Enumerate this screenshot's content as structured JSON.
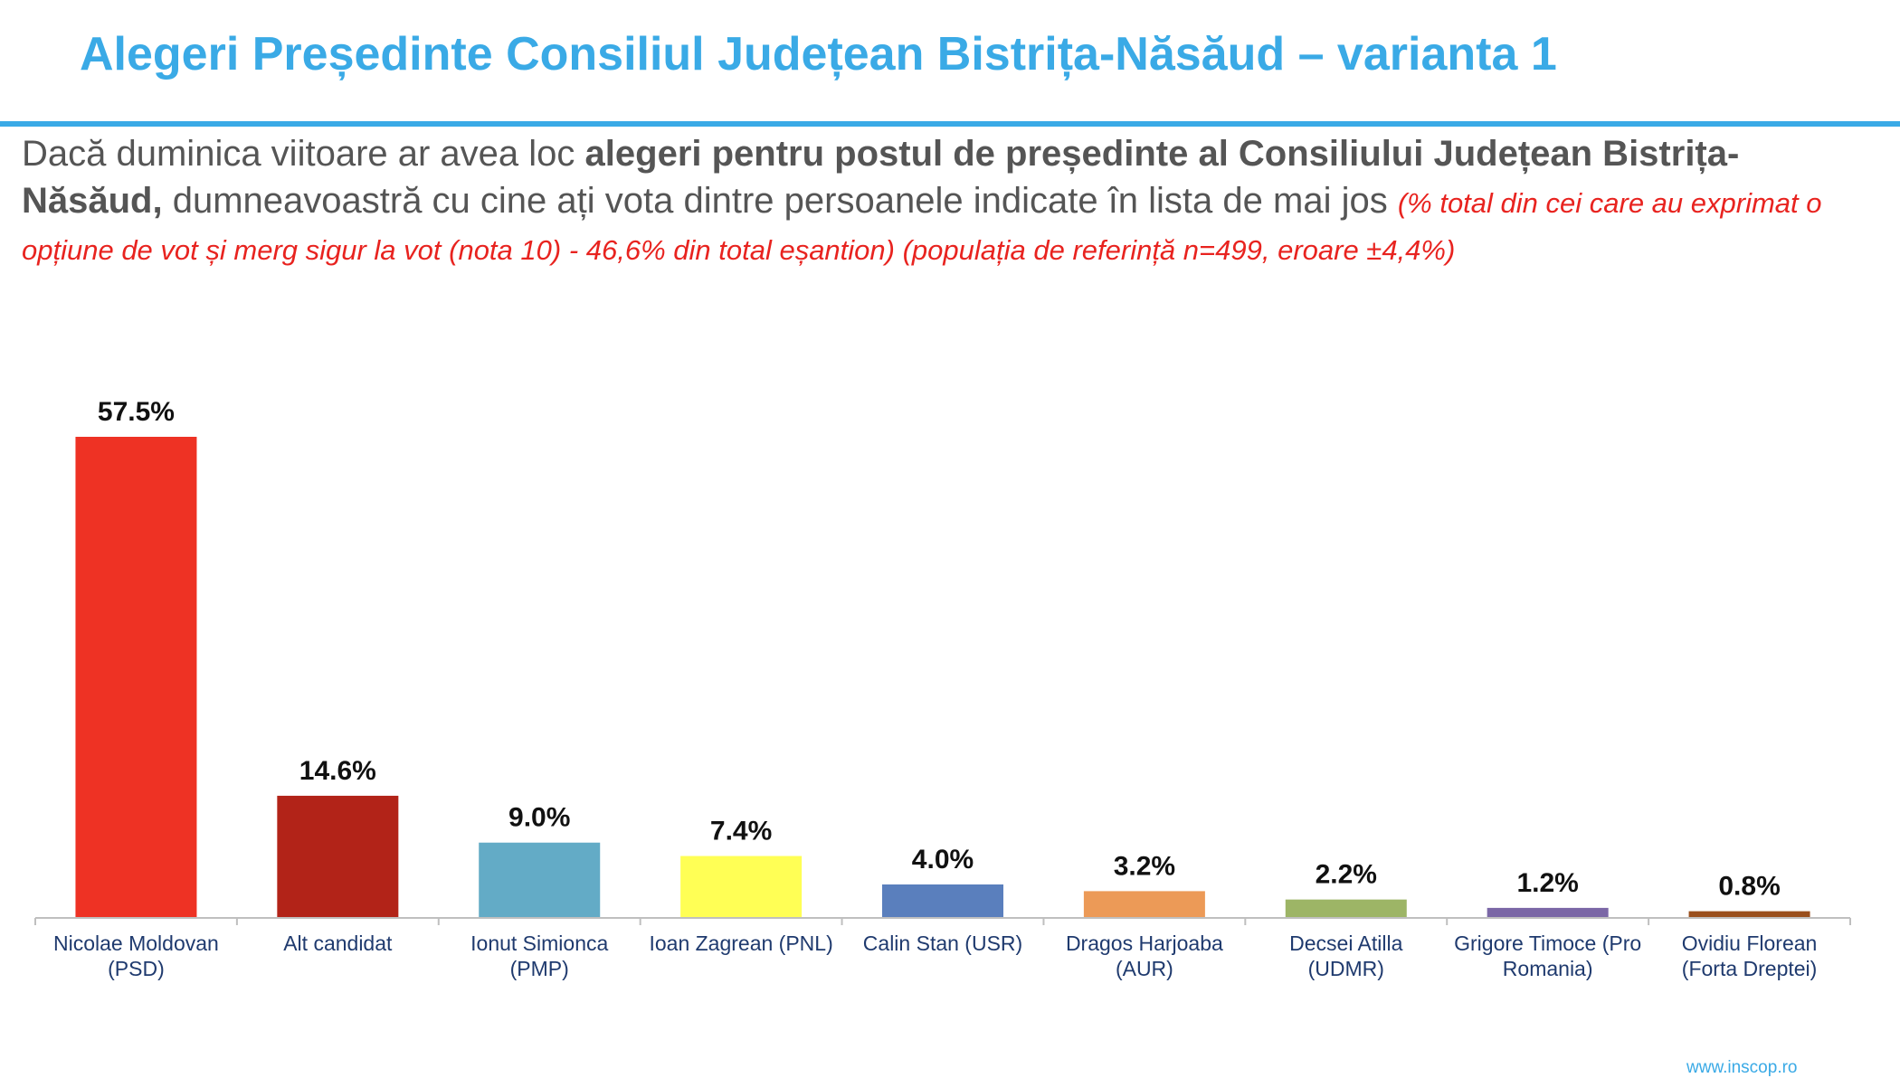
{
  "title": "Alegeri Președinte Consiliul Județean Bistrița-Năsăud – varianta 1",
  "question": {
    "lead": "Dacă duminica viitoare ar avea loc ",
    "bold": "alegeri pentru postul de președinte al Consiliului Județean Bistrița-Năsăud,",
    "rest": " dumneavoastră cu cine ați vota dintre persoanele indicate în lista de mai jos ",
    "note": "(% total din cei care au exprimat o opțiune de vot și merg sigur la vot (nota 10)  - 46,6% din total eșantion) (populația de referință n=499, eroare ±4,4%)"
  },
  "chart_data": {
    "type": "bar",
    "title": "",
    "xlabel": "",
    "ylabel": "",
    "ylim": [
      0,
      57.5
    ],
    "grid": false,
    "categories": [
      [
        "Nicolae Moldovan",
        "(PSD)"
      ],
      [
        "Alt candidat"
      ],
      [
        "Ionut Simionca",
        "(PMP)"
      ],
      [
        "Ioan Zagrean (PNL)"
      ],
      [
        "Calin Stan (USR)"
      ],
      [
        "Dragos Harjoaba",
        "(AUR)"
      ],
      [
        "Decsei Atilla",
        "(UDMR)"
      ],
      [
        "Grigore Timoce (Pro",
        "Romania)"
      ],
      [
        "Ovidiu Florean",
        "(Forta Dreptei)"
      ]
    ],
    "values": [
      57.5,
      14.6,
      9.0,
      7.4,
      4.0,
      3.2,
      2.2,
      1.2,
      0.8
    ],
    "value_labels": [
      "57.5%",
      "14.6%",
      "9.0%",
      "7.4%",
      "4.0%",
      "3.2%",
      "2.2%",
      "1.2%",
      "0.8%"
    ],
    "colors": [
      "#ee3224",
      "#b22318",
      "#63abc6",
      "#ffff55",
      "#5a7fbd",
      "#ec9a57",
      "#9db566",
      "#7b67a6",
      "#9a4f1c"
    ]
  },
  "footer": "www.inscop.ro"
}
